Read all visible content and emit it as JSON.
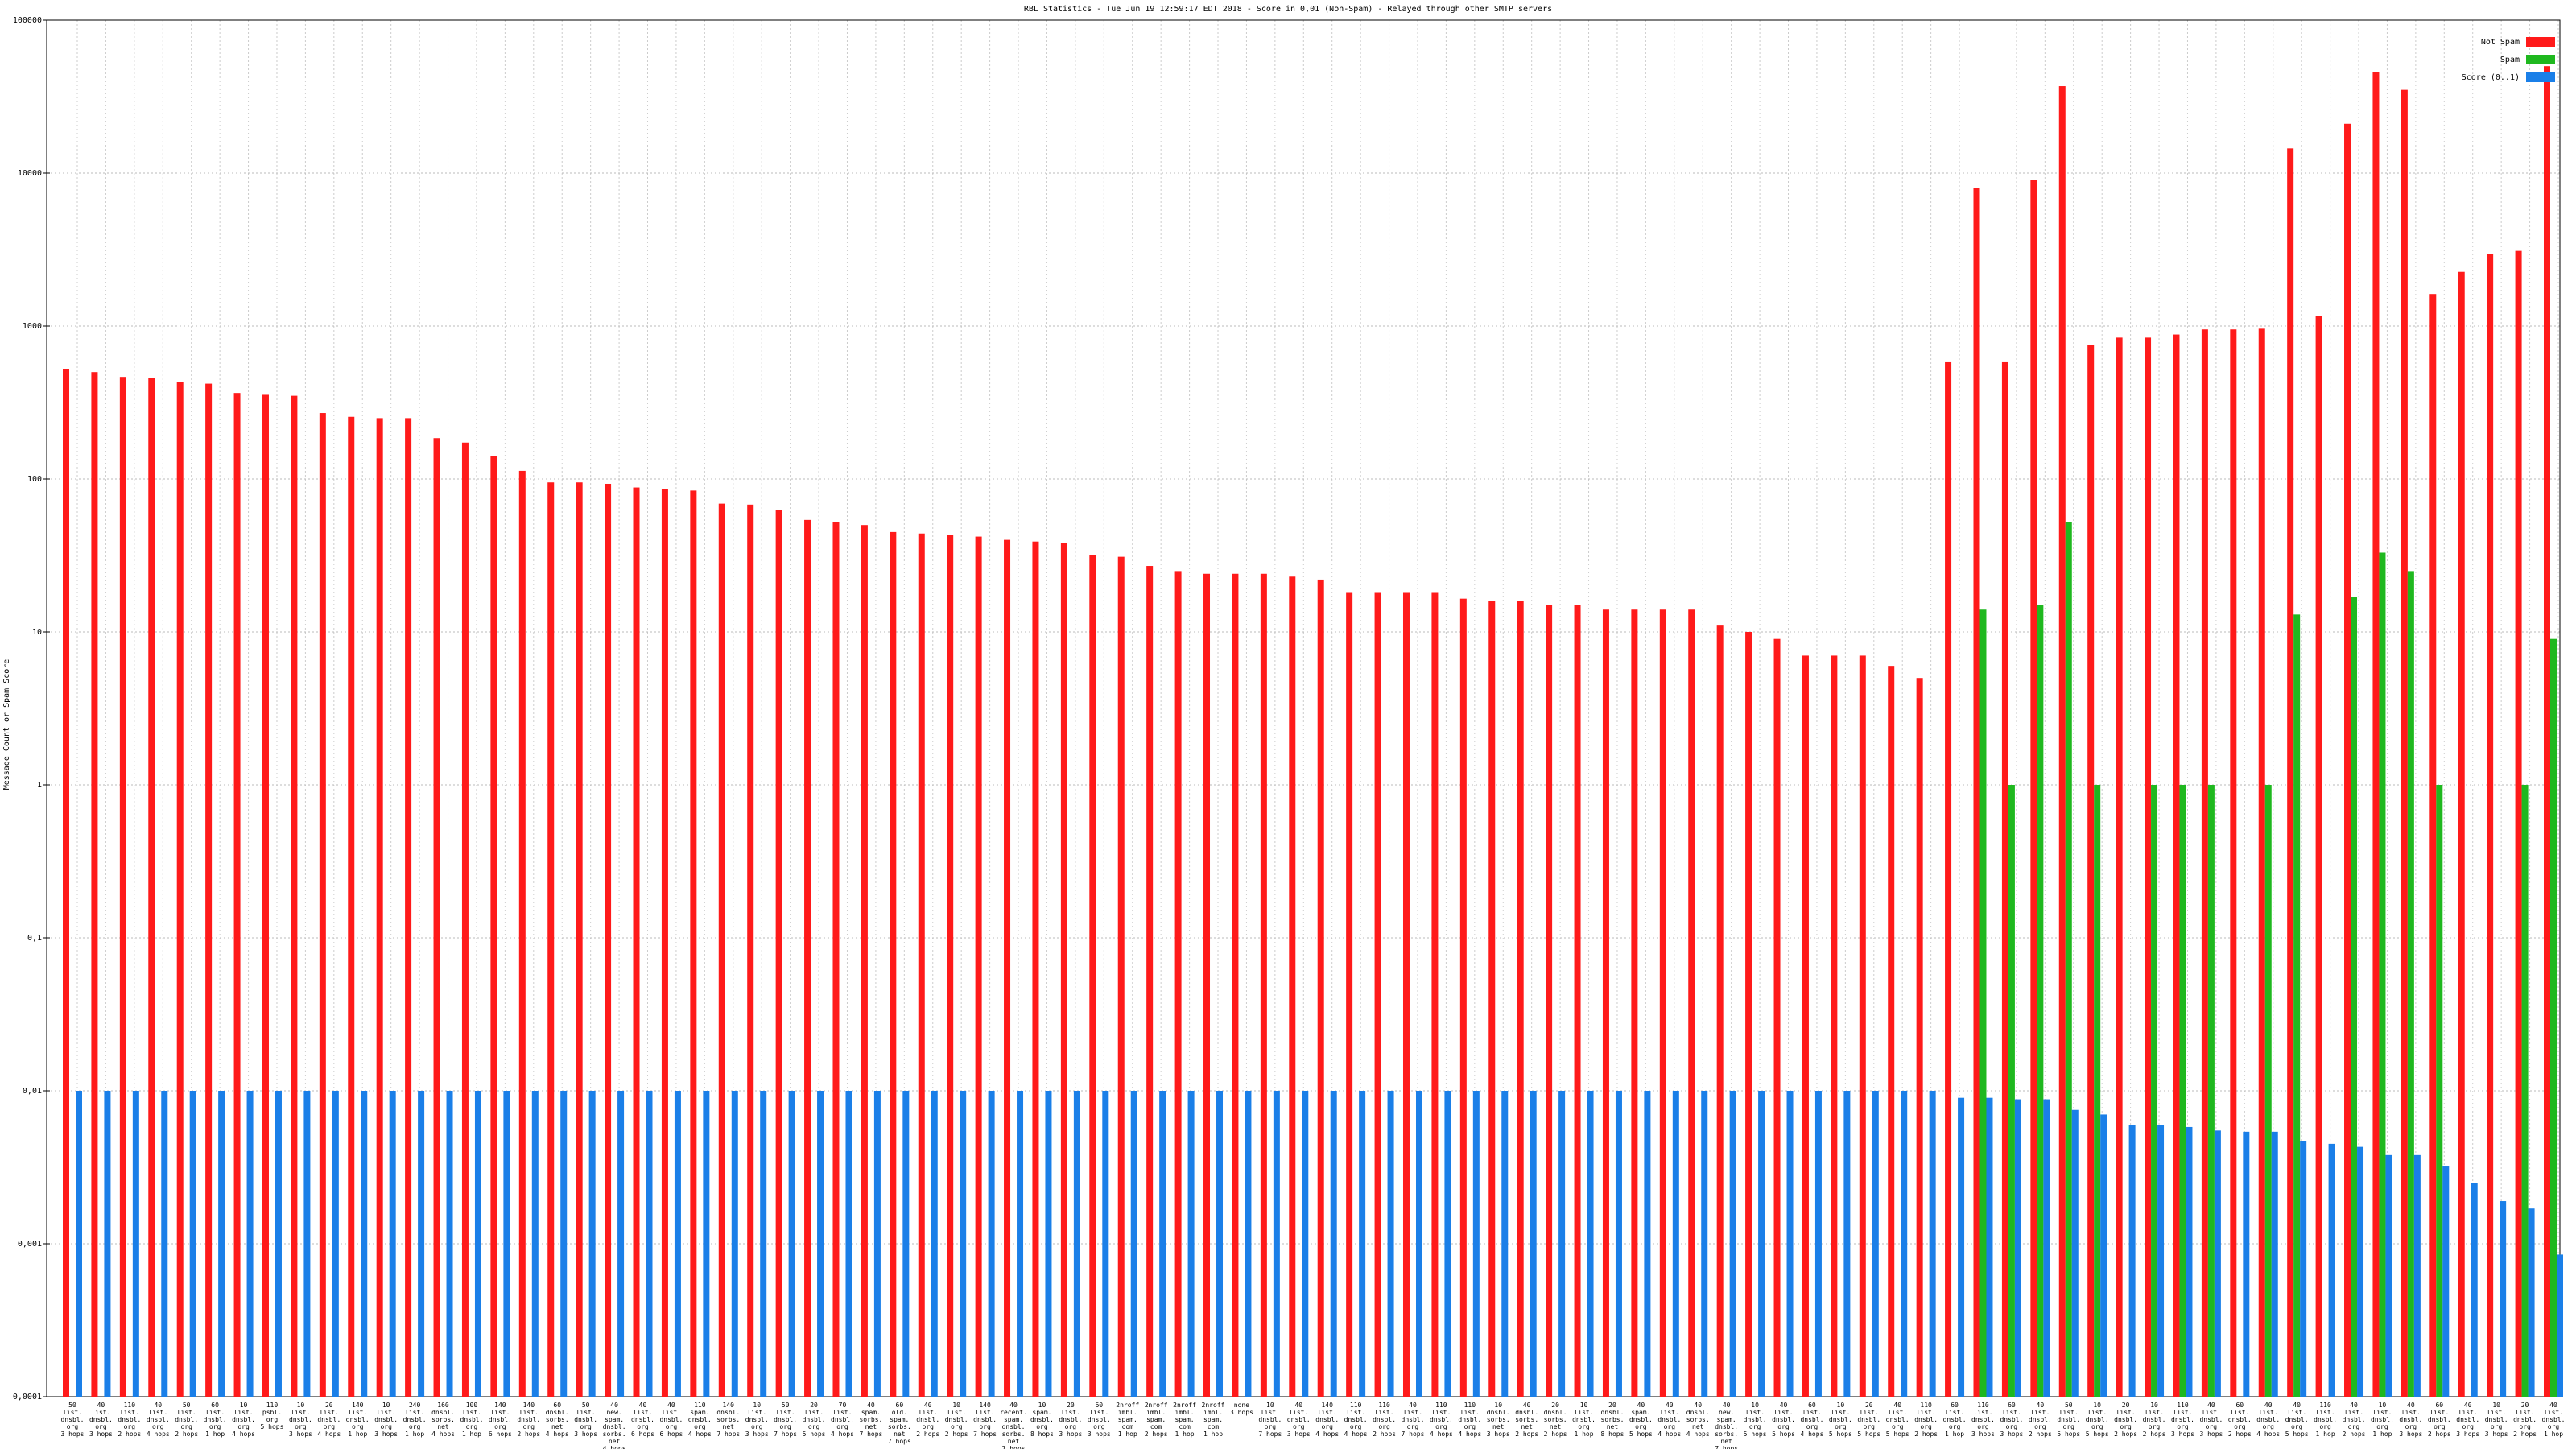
{
  "chart_data": {
    "type": "bar",
    "title": "RBL Statistics - Tue Jun 19 12:59:17 EDT 2018 - Score in 0,01 (Non-Spam) - Relayed through other SMTP servers",
    "y_label": "Message Count or Spam Score",
    "log_scale": true,
    "grid": true,
    "legend_position": "top-right",
    "categories": [
      "50\nlist.\ndnsbl.\norg\n3 hops",
      "40\nlist.\ndnsbl.\norg\n3 hops",
      "110\nlist.\ndnsbl.\norg\n2 hops",
      "40\nlist.\ndnsbl.\norg\n4 hops",
      "50\nlist.\ndnsbl.\norg\n2 hops",
      "60\nlist.\ndnsbl.\norg\n1 hop",
      "10\nlist.\ndnsbl.\norg\n4 hops",
      "110\npsbl.\norg\n5 hops",
      "10\nlist.\ndnsbl.\norg\n3 hops",
      "20\nlist.\ndnsbl.\norg\n4 hops",
      "140\nlist.\ndnsbl.\norg\n1 hop",
      "10\nlist.\ndnsbl.\norg\n3 hops",
      "240\nlist.\ndnsbl.\norg\n1 hop",
      "160\ndnsbl.\nsorbs.\nnet\n4 hops",
      "100\nlist.\ndnsbl.\norg\n1 hop",
      "140\nlist.\ndnsbl.\norg\n6 hops",
      "140\nlist.\ndnsbl.\norg\n2 hops",
      "60\ndnsbl.\nsorbs.\nnet\n4 hops",
      "50\nlist.\ndnsbl.\norg\n3 hops",
      "40\nnew.\nspam.\ndnsbl.\nsorbs.\nnet\n4 hops",
      "40\nlist.\ndnsbl.\norg\n6 hops",
      "40\nlist.\ndnsbl.\norg\n6 hops",
      "110\nspam.\ndnsbl.\norg\n4 hops",
      "140\ndnsbl.\nsorbs.\nnet\n7 hops",
      "10\nlist.\ndnsbl.\norg\n3 hops",
      "50\nlist.\ndnsbl.\norg\n7 hops",
      "20\nlist.\ndnsbl.\norg\n5 hops",
      "70\nlist.\ndnsbl.\norg\n4 hops",
      "40\nspam.\nsorbs.\nnet\n7 hops",
      "60\nold.\nspam.\nsorbs.\nnet\n7 hops",
      "40\nlist.\ndnsbl.\norg\n2 hops",
      "10\nlist.\ndnsbl.\norg\n2 hops",
      "140\nlist.\ndnsbl.\norg\n7 hops",
      "40\nrecent.\nspam.\ndnsbl.\nsorbs.\nnet\n7 hops",
      "10\nspam.\ndnsbl.\norg\n8 hops",
      "20\nlist.\ndnsbl.\norg\n3 hops",
      "60\nlist.\ndnsbl.\norg\n3 hops",
      "2nroff\nimbl.\nspam.\ncom\n1 hop",
      "2nroff\nimbl.\nspam.\ncom\n2 hops",
      "2nroff\nimbl.\nspam.\ncom\n1 hop",
      "2nroff\nimbl.\nspam.\ncom\n1 hop",
      "none\n3 hops",
      "10\nlist.\ndnsbl.\norg\n7 hops",
      "40\nlist.\ndnsbl.\norg\n3 hops",
      "140\nlist.\ndnsbl.\norg\n4 hops",
      "110\nlist.\ndnsbl.\norg\n4 hops",
      "110\nlist.\ndnsbl.\norg\n2 hops",
      "40\nlist.\ndnsbl.\norg\n7 hops",
      "110\nlist.\ndnsbl.\norg\n4 hops",
      "110\nlist.\ndnsbl.\norg\n4 hops",
      "10\ndnsbl.\nsorbs.\nnet\n3 hops",
      "40\ndnsbl.\nsorbs.\nnet\n2 hops",
      "20\ndnsbl.\nsorbs.\nnet\n2 hops",
      "10\nlist.\ndnsbl.\norg\n1 hop",
      "20\ndnsbl.\nsorbs.\nnet\n8 hops",
      "40\nspam.\ndnsbl.\norg\n5 hops",
      "40\nlist.\ndnsbl.\norg\n4 hops",
      "40\ndnsbl.\nsorbs.\nnet\n4 hops",
      "40\nnew.\nspam.\ndnsbl.\nsorbs.\nnet\n7 hops",
      "10\nlist.\ndnsbl.\norg\n5 hops",
      "40\nlist.\ndnsbl.\norg\n5 hops",
      "60\nlist.\ndnsbl.\norg\n4 hops",
      "10\nlist.\ndnsbl.\norg\n5 hops",
      "20\nlist.\ndnsbl.\norg\n5 hops",
      "40\nlist.\ndnsbl.\norg\n5 hops",
      "110\nlist.\ndnsbl.\norg\n2 hops",
      "60\nlist.\ndnsbl.\norg\n1 hop",
      "110\nlist.\ndnsbl.\norg\n3 hops",
      "60\nlist.\ndnsbl.\norg\n3 hops",
      "40\nlist.\ndnsbl.\norg\n2 hops",
      "50\nlist.\ndnsbl.\norg\n5 hops",
      "10\nlist.\ndnsbl.\norg\n5 hops",
      "20\nlist.\ndnsbl.\norg\n2 hops",
      "10\nlist.\ndnsbl.\norg\n2 hops",
      "110\nlist.\ndnsbl.\norg\n3 hops",
      "40\nlist.\ndnsbl.\norg\n3 hops",
      "60\nlist.\ndnsbl.\norg\n2 hops",
      "40\nlist.\ndnsbl.\norg\n4 hops",
      "40\nlist.\ndnsbl.\norg\n5 hops",
      "110\nlist.\ndnsbl.\norg\n1 hop",
      "40\nlist.\ndnsbl.\norg\n2 hops",
      "10\nlist.\ndnsbl.\norg\n1 hop",
      "40\nlist.\ndnsbl.\norg\n3 hops",
      "60\nlist.\ndnsbl.\norg\n2 hops",
      "40\nlist.\ndnsbl.\norg\n3 hops",
      "10\nlist.\ndnsbl.\norg\n3 hops",
      "20\nlist.\ndnsbl.\norg\n2 hops",
      "40\nlist.\ndnsbl.\norg\n1 hop"
    ],
    "series": [
      {
        "name": "Not Spam",
        "color": "#ff1a1a",
        "values": [
          525,
          500,
          465,
          455,
          430,
          420,
          365,
          355,
          350,
          270,
          255,
          250,
          250,
          185,
          173,
          142,
          113,
          95,
          95,
          93,
          88,
          86,
          84,
          69,
          68,
          63,
          54,
          52,
          50,
          45,
          44,
          43,
          42,
          40,
          39,
          38,
          32,
          31,
          27,
          25,
          24,
          24,
          24,
          23,
          22,
          18,
          18,
          18,
          18,
          16.5,
          16,
          16,
          15,
          15,
          14,
          14,
          14,
          14,
          11,
          10,
          9,
          7,
          7,
          7,
          6,
          5,
          580,
          8000,
          580,
          9000,
          37000,
          750,
          840,
          840,
          880,
          950,
          950,
          960,
          14500,
          1170,
          21000,
          46000,
          35000,
          1620,
          2260,
          2950,
          3100,
          50000
        ]
      },
      {
        "name": "Spam",
        "color": "#1fb81f",
        "values": [
          null,
          null,
          null,
          null,
          null,
          null,
          null,
          null,
          null,
          null,
          null,
          null,
          null,
          null,
          null,
          null,
          null,
          null,
          null,
          null,
          null,
          null,
          null,
          null,
          null,
          null,
          null,
          null,
          null,
          null,
          null,
          null,
          null,
          null,
          null,
          null,
          null,
          null,
          null,
          null,
          null,
          null,
          null,
          null,
          null,
          null,
          null,
          null,
          null,
          null,
          null,
          null,
          null,
          null,
          null,
          null,
          null,
          null,
          null,
          null,
          null,
          null,
          null,
          null,
          null,
          null,
          null,
          14,
          1,
          15,
          52,
          1,
          null,
          1,
          1,
          1,
          null,
          1,
          13,
          null,
          17,
          33,
          25,
          1,
          null,
          null,
          1,
          9
        ]
      },
      {
        "name": "Score (0..1)",
        "color": "#1a7fe8",
        "values": [
          0.01,
          0.01,
          0.01,
          0.01,
          0.01,
          0.01,
          0.01,
          0.01,
          0.01,
          0.01,
          0.01,
          0.01,
          0.01,
          0.01,
          0.01,
          0.01,
          0.01,
          0.01,
          0.01,
          0.01,
          0.01,
          0.01,
          0.01,
          0.01,
          0.01,
          0.01,
          0.01,
          0.01,
          0.01,
          0.01,
          0.01,
          0.01,
          0.01,
          0.01,
          0.01,
          0.01,
          0.01,
          0.01,
          0.01,
          0.01,
          0.01,
          0.01,
          0.01,
          0.01,
          0.01,
          0.01,
          0.01,
          0.01,
          0.01,
          0.01,
          0.01,
          0.01,
          0.01,
          0.01,
          0.01,
          0.01,
          0.01,
          0.01,
          0.01,
          0.01,
          0.01,
          0.01,
          0.01,
          0.01,
          0.01,
          0.01,
          0.009,
          0.009,
          0.0088,
          0.0088,
          0.0075,
          0.007,
          0.006,
          0.006,
          0.0058,
          0.0055,
          0.0054,
          0.0054,
          0.0047,
          0.0045,
          0.0043,
          0.0038,
          0.0038,
          0.0032,
          0.0025,
          0.0019,
          0.0017,
          0.00085
        ]
      }
    ],
    "ylim": [
      0.0001,
      100000
    ],
    "yticks": [
      {
        "value": 0.0001,
        "label": "0,0001"
      },
      {
        "value": 0.001,
        "label": "0,001"
      },
      {
        "value": 0.01,
        "label": "0,01"
      },
      {
        "value": 0.1,
        "label": "0,1"
      },
      1,
      10,
      100,
      1000,
      10000,
      100000
    ]
  }
}
